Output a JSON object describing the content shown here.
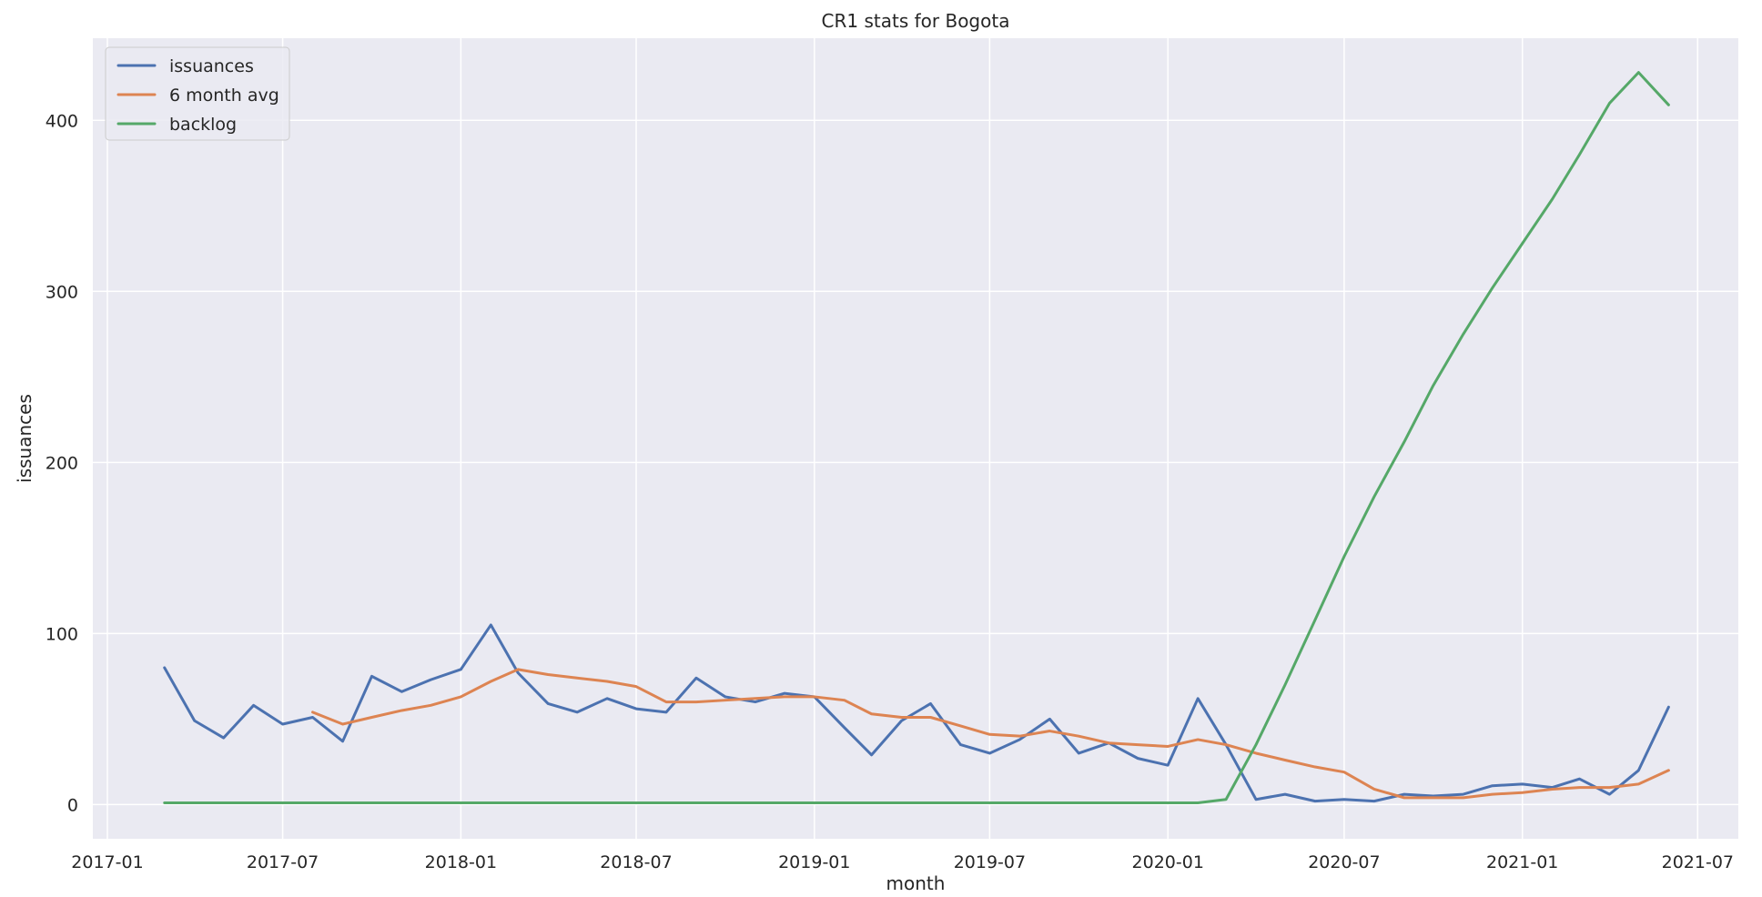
{
  "chart_data": {
    "type": "line",
    "title": "CR1 stats for Bogota",
    "xlabel": "month",
    "ylabel": "issuances",
    "xlim": [
      "2016-12-17",
      "2021-08-12"
    ],
    "ylim": [
      -20,
      448
    ],
    "x_ticks": [
      "2017-01-01",
      "2017-07-01",
      "2018-01-01",
      "2018-07-01",
      "2019-01-01",
      "2019-07-01",
      "2020-01-01",
      "2020-07-01",
      "2021-01-01",
      "2021-07-01"
    ],
    "x_tick_labels": [
      "2017-01",
      "2017-07",
      "2018-01",
      "2018-07",
      "2019-01",
      "2019-07",
      "2020-01",
      "2020-07",
      "2021-01",
      "2021-07"
    ],
    "y_ticks": [
      0,
      100,
      200,
      300,
      400
    ],
    "y_tick_labels": [
      "0",
      "100",
      "200",
      "300",
      "400"
    ],
    "grid": true,
    "legend_position": "top-left",
    "background": "#eaeaf2",
    "x": [
      "2017-03-01",
      "2017-04-01",
      "2017-05-01",
      "2017-06-01",
      "2017-07-01",
      "2017-08-01",
      "2017-09-01",
      "2017-10-01",
      "2017-11-01",
      "2017-12-01",
      "2018-01-01",
      "2018-02-01",
      "2018-03-01",
      "2018-04-01",
      "2018-05-01",
      "2018-06-01",
      "2018-07-01",
      "2018-08-01",
      "2018-09-01",
      "2018-10-01",
      "2018-11-01",
      "2018-12-01",
      "2019-01-01",
      "2019-02-01",
      "2019-03-01",
      "2019-04-01",
      "2019-05-01",
      "2019-06-01",
      "2019-07-01",
      "2019-08-01",
      "2019-09-01",
      "2019-10-01",
      "2019-11-01",
      "2019-12-01",
      "2020-01-01",
      "2020-02-01",
      "2020-03-01",
      "2020-04-01",
      "2020-05-01",
      "2020-06-01",
      "2020-07-01",
      "2020-08-01",
      "2020-09-01",
      "2020-10-01",
      "2020-11-01",
      "2020-12-01",
      "2021-01-01",
      "2021-02-01",
      "2021-03-01",
      "2021-04-01",
      "2021-05-01",
      "2021-06-01"
    ],
    "series": [
      {
        "name": "issuances",
        "color": "#4c72b0",
        "values": [
          80,
          49,
          39,
          58,
          47,
          51,
          37,
          75,
          66,
          73,
          79,
          105,
          77,
          59,
          54,
          62,
          56,
          54,
          74,
          63,
          60,
          65,
          63,
          45,
          29,
          49,
          59,
          35,
          30,
          38,
          50,
          30,
          36,
          27,
          23,
          62,
          35,
          3,
          6,
          2,
          3,
          2,
          6,
          5,
          6,
          11,
          12,
          10,
          15,
          6,
          20,
          57
        ]
      },
      {
        "name": "6 month avg",
        "color": "#dd8452",
        "values": [
          null,
          null,
          null,
          null,
          null,
          54,
          47,
          51,
          55,
          58,
          63,
          72,
          79,
          76,
          74,
          72,
          69,
          60,
          60,
          61,
          62,
          63,
          63,
          61,
          53,
          51,
          51,
          46,
          41,
          40,
          43,
          40,
          36,
          35,
          34,
          38,
          35,
          30,
          26,
          22,
          19,
          9,
          4,
          4,
          4,
          6,
          7,
          9,
          10,
          10,
          12,
          20
        ]
      },
      {
        "name": "backlog",
        "color": "#55a868",
        "values": [
          1,
          1,
          1,
          1,
          1,
          1,
          1,
          1,
          1,
          1,
          1,
          1,
          1,
          1,
          1,
          1,
          1,
          1,
          1,
          1,
          1,
          1,
          1,
          1,
          1,
          1,
          1,
          1,
          1,
          1,
          1,
          1,
          1,
          1,
          1,
          1,
          3,
          35,
          70,
          108,
          145,
          180,
          212,
          245,
          275,
          302,
          328,
          354,
          380,
          410,
          428,
          409
        ]
      }
    ]
  }
}
